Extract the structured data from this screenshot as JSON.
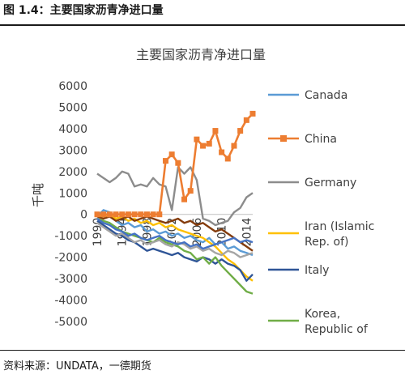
{
  "figure": {
    "caption": "图 1.4：主要国家沥青净进口量",
    "source": "资料来源：UNDATA，一德期货"
  },
  "chart_data": {
    "type": "line",
    "title": "主要国家沥青净进口量",
    "ylabel": "千吨",
    "xlabel": "",
    "ylim": [
      -5000,
      6000
    ],
    "y_ticks": [
      "6000",
      "5000",
      "4000",
      "3000",
      "2000",
      "1000",
      "0",
      "-1000",
      "-2000",
      "-3000",
      "-4000",
      "-5000"
    ],
    "x_range": [
      1990,
      2015
    ],
    "x_tick_labels": [
      "1990",
      "1994",
      "1998",
      "2002",
      "2006",
      "2010",
      "2014"
    ],
    "legend_position": "right",
    "grid": false,
    "series": [
      {
        "name": "Canada",
        "color": "#5b9bd5",
        "marker": "none",
        "x": [
          1990,
          1991,
          1992,
          1993,
          1994,
          1995,
          1996,
          1997,
          1998,
          1999,
          2000,
          2001,
          2002,
          2003,
          2004,
          2005,
          2006,
          2007,
          2008,
          2009,
          2010,
          2011,
          2012,
          2013,
          2014,
          2015
        ],
        "y": [
          -100,
          200,
          100,
          -300,
          -500,
          -400,
          -600,
          -500,
          -800,
          -700,
          -900,
          -800,
          -1000,
          -900,
          -1100,
          -1000,
          -1200,
          -1300,
          -1100,
          -1400,
          -1300,
          -1600,
          -1500,
          -1700,
          -1800,
          -1900
        ]
      },
      {
        "name": "China",
        "color": "#ed7d31",
        "marker": "square",
        "x": [
          1990,
          1991,
          1992,
          1993,
          1994,
          1995,
          1996,
          1997,
          1998,
          1999,
          2000,
          2001,
          2002,
          2003,
          2004,
          2005,
          2006,
          2007,
          2008,
          2009,
          2010,
          2011,
          2012,
          2013,
          2014,
          2015
        ],
        "y": [
          0,
          0,
          0,
          0,
          0,
          0,
          0,
          0,
          0,
          0,
          0,
          2500,
          2800,
          2400,
          700,
          1100,
          3500,
          3200,
          3300,
          3900,
          2900,
          2600,
          3200,
          3900,
          4400,
          4700
        ]
      },
      {
        "name": "Germany",
        "color": "#8c8c8c",
        "marker": "none",
        "x": [
          1990,
          1991,
          1992,
          1993,
          1994,
          1995,
          1996,
          1997,
          1998,
          1999,
          2000,
          2001,
          2002,
          2003,
          2004,
          2005,
          2006,
          2007,
          2008,
          2009,
          2010,
          2011,
          2012,
          2013,
          2014,
          2015
        ],
        "y": [
          1900,
          1700,
          1500,
          1700,
          2000,
          1900,
          1300,
          1400,
          1300,
          1700,
          1400,
          1300,
          200,
          2200,
          1900,
          2200,
          1600,
          -200,
          -300,
          -500,
          -400,
          -300,
          100,
          300,
          800,
          1000
        ]
      },
      {
        "name": "Iran (Islamic Rep. of)",
        "color": "#ffc000",
        "marker": "none",
        "x": [
          1990,
          1991,
          1992,
          1993,
          1994,
          1995,
          1996,
          1997,
          1998,
          1999,
          2000,
          2001,
          2002,
          2003,
          2004,
          2005,
          2006,
          2007,
          2008,
          2009,
          2010,
          2011,
          2012,
          2013,
          2014,
          2015
        ],
        "y": [
          0,
          -100,
          0,
          -200,
          -100,
          -300,
          -200,
          -400,
          -300,
          -500,
          -400,
          -600,
          -500,
          -700,
          -800,
          -900,
          -1000,
          -1100,
          -1300,
          -1500,
          -1800,
          -2100,
          -2300,
          -2600,
          -2900,
          -3100
        ]
      },
      {
        "name": "Italy",
        "color": "#2f5597",
        "marker": "none",
        "x": [
          1990,
          1991,
          1992,
          1993,
          1994,
          1995,
          1996,
          1997,
          1998,
          1999,
          2000,
          2001,
          2002,
          2003,
          2004,
          2005,
          2006,
          2007,
          2008,
          2009,
          2010,
          2011,
          2012,
          2013,
          2014,
          2015
        ],
        "y": [
          -300,
          -500,
          -700,
          -900,
          -1000,
          -1200,
          -1300,
          -1500,
          -1700,
          -1600,
          -1700,
          -1800,
          -1900,
          -1800,
          -2000,
          -2100,
          -2200,
          -2000,
          -2100,
          -2300,
          -2100,
          -2300,
          -2400,
          -2600,
          -3100,
          -2800
        ]
      },
      {
        "name": "Korea, Republic of",
        "color": "#70ad47",
        "marker": "none",
        "x": [
          1990,
          1991,
          1992,
          1993,
          1994,
          1995,
          1996,
          1997,
          1998,
          1999,
          2000,
          2001,
          2002,
          2003,
          2004,
          2005,
          2006,
          2007,
          2008,
          2009,
          2010,
          2011,
          2012,
          2013,
          2014,
          2015
        ],
        "y": [
          -200,
          -300,
          -400,
          -600,
          -800,
          -900,
          -1000,
          -1100,
          -1200,
          -1300,
          -1100,
          -1300,
          -1400,
          -1500,
          -1700,
          -1800,
          -2100,
          -2000,
          -2300,
          -2000,
          -2400,
          -2700,
          -3000,
          -3300,
          -3600,
          -3700
        ]
      },
      {
        "name": "",
        "color": "#843c0c",
        "marker": "none",
        "x": [
          1990,
          1991,
          1992,
          1993,
          1994,
          1995,
          1996,
          1997,
          1998,
          1999,
          2000,
          2001,
          2002,
          2003,
          2004,
          2005,
          2006,
          2007,
          2008,
          2009,
          2010,
          2011,
          2012,
          2013,
          2014,
          2015
        ],
        "y": [
          -100,
          -200,
          -100,
          -300,
          -200,
          -100,
          -300,
          -200,
          -100,
          -200,
          -300,
          -400,
          -300,
          -200,
          -400,
          -300,
          -500,
          -400,
          -600,
          -800,
          -700,
          -900,
          -1100,
          -1300,
          -1500,
          -1700
        ]
      },
      {
        "name": "",
        "color": "#a5a5a5",
        "marker": "none",
        "x": [
          1990,
          1991,
          1992,
          1993,
          1994,
          1995,
          1996,
          1997,
          1998,
          1999,
          2000,
          2001,
          2002,
          2003,
          2004,
          2005,
          2006,
          2007,
          2008,
          2009,
          2010,
          2011,
          2012,
          2013,
          2014,
          2015
        ],
        "y": [
          -400,
          -600,
          -800,
          -1000,
          -900,
          -1100,
          -1300,
          -1200,
          -1400,
          -1300,
          -1200,
          -1400,
          -1500,
          -1300,
          -1400,
          -1600,
          -1500,
          -1700,
          -1600,
          -1800,
          -1900,
          -1700,
          -1800,
          -2000,
          -1900,
          -1800
        ]
      },
      {
        "name": "",
        "color": "#4472c4",
        "marker": "none",
        "x": [
          1990,
          1991,
          1992,
          1993,
          1994,
          1995,
          1996,
          1997,
          1998,
          1999,
          2000,
          2001,
          2002,
          2003,
          2004,
          2005,
          2006,
          2007,
          2008,
          2009,
          2010,
          2011,
          2012,
          2013,
          2014,
          2015
        ],
        "y": [
          -200,
          -400,
          -500,
          -700,
          -800,
          -1000,
          -900,
          -1100,
          -1200,
          -1100,
          -1000,
          -1200,
          -1300,
          -1400,
          -1300,
          -1500,
          -1400,
          -1600,
          -1500,
          -1400,
          -1300,
          -1200,
          -1100,
          -1300,
          -1200,
          -1300
        ]
      }
    ]
  }
}
